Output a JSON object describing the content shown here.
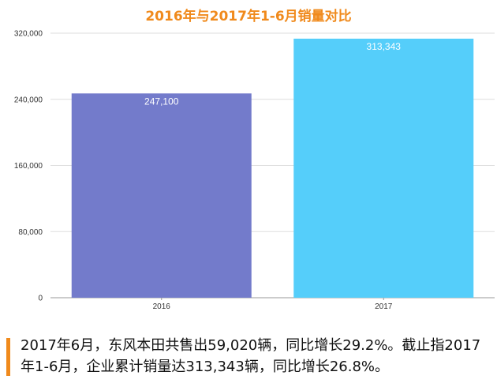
{
  "chart_data": {
    "type": "bar",
    "title": "2016年与2017年1-6月销量对比",
    "categories": [
      "2016",
      "2017"
    ],
    "values": [
      247100,
      313343
    ],
    "value_labels": [
      "247,100",
      "313,343"
    ],
    "ylim": [
      0,
      320000
    ],
    "yticks": [
      0,
      80000,
      160000,
      240000,
      320000
    ],
    "ytick_labels": [
      "0",
      "80,000",
      "160,000",
      "240,000",
      "320,000"
    ],
    "bar_colors": [
      "#737bcb",
      "#55cefa"
    ],
    "grid": true,
    "legend": "none"
  },
  "caption": {
    "text": "2017年6月，东风本田共售出59,020辆，同比增长29.2%。截止指2017年1-6月，企业累计销量达313,343辆，同比增长26.8%。",
    "accent_color": "#f08a1c"
  }
}
